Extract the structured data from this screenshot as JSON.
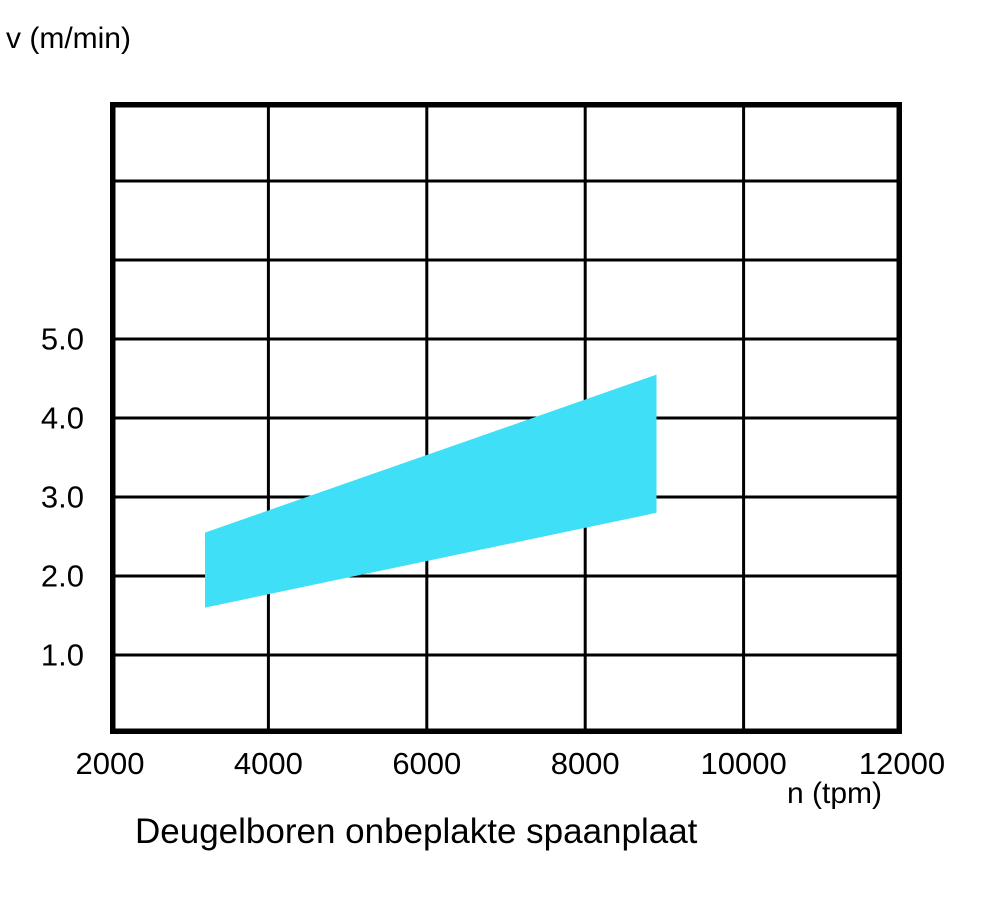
{
  "figure": {
    "background": "#ffffff",
    "text_color": "#000000"
  },
  "chart_data": {
    "type": "area",
    "title": "Deugelboren onbeplakte spaanplaat",
    "xlabel": "n (tpm)",
    "ylabel": "v (m/min)",
    "xlim": [
      2000,
      12000
    ],
    "ylim": [
      0,
      8
    ],
    "grid": true,
    "grid_color": "#000000",
    "border_color": "#000000",
    "x_ticks": [
      {
        "value": 2000,
        "label": "2000"
      },
      {
        "value": 4000,
        "label": "4000"
      },
      {
        "value": 6000,
        "label": "6000"
      },
      {
        "value": 8000,
        "label": "8000"
      },
      {
        "value": 10000,
        "label": "10000"
      },
      {
        "value": 12000,
        "label": "12000"
      }
    ],
    "y_ticks": [
      {
        "value": 1,
        "label": "1.0"
      },
      {
        "value": 2,
        "label": "2.0"
      },
      {
        "value": 3,
        "label": "3.0"
      },
      {
        "value": 4,
        "label": "4.0"
      },
      {
        "value": 5,
        "label": "5.0"
      }
    ],
    "x_gridlines": [
      2000,
      4000,
      6000,
      8000,
      10000,
      12000
    ],
    "y_gridlines": [
      0,
      1,
      2,
      3,
      4,
      5,
      6,
      7,
      8
    ],
    "band": {
      "x": [
        3200,
        8900
      ],
      "lower": [
        1.6,
        2.8
      ],
      "upper": [
        2.55,
        4.55
      ],
      "color": "#3EDFF7"
    }
  }
}
